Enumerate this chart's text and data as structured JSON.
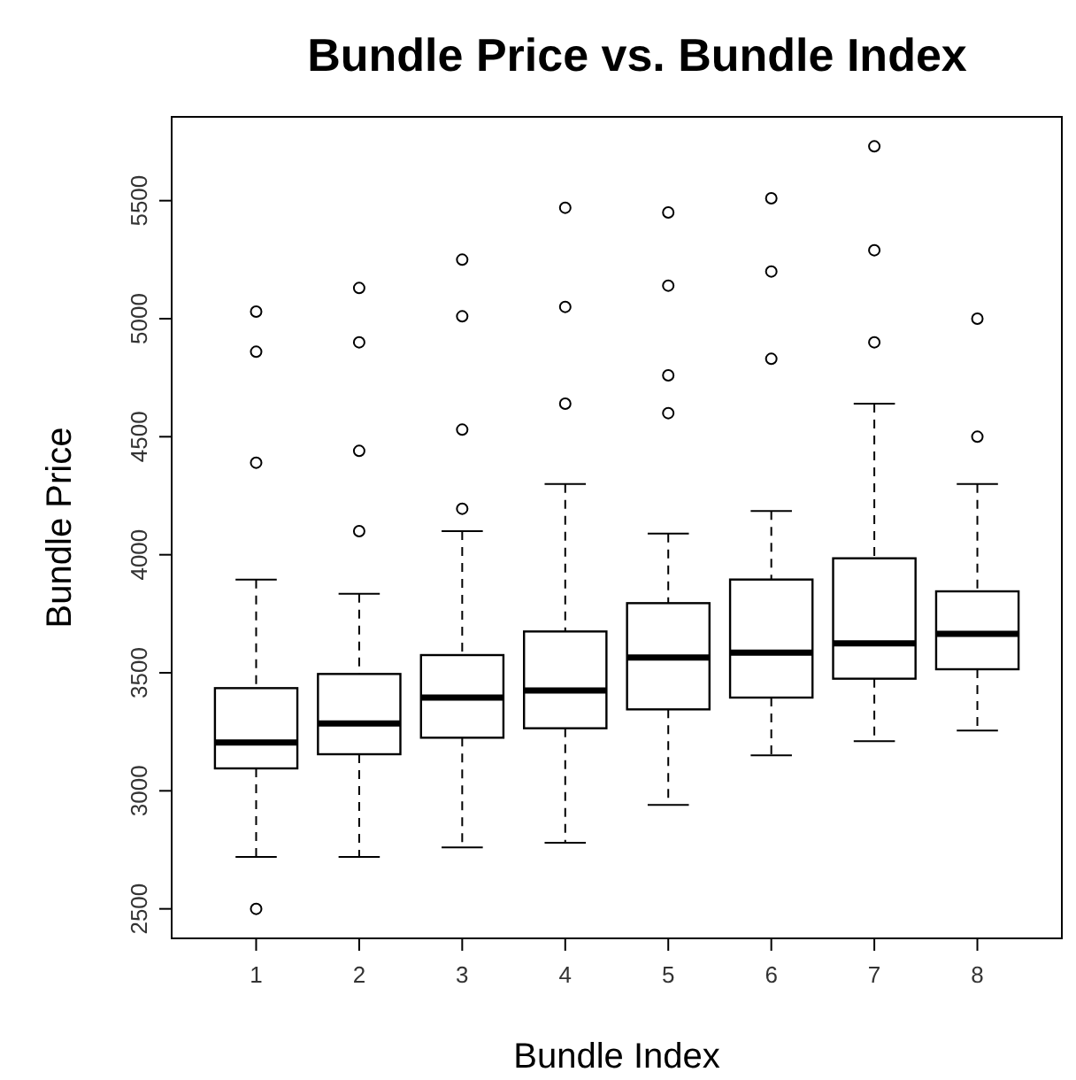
{
  "chart_data": {
    "type": "box",
    "title": "Bundle Price vs. Bundle Index",
    "xlabel": "Bundle Index",
    "ylabel": "Bundle Price",
    "categories": [
      "1",
      "2",
      "3",
      "4",
      "5",
      "6",
      "7",
      "8"
    ],
    "ylim": [
      2375,
      5855
    ],
    "yticks": [
      2500,
      3000,
      3500,
      4000,
      4500,
      5000,
      5500
    ],
    "grid": false,
    "boxes": [
      {
        "low": 2720,
        "q1": 3095,
        "median": 3205,
        "q3": 3435,
        "high": 3895,
        "outliers": [
          5030,
          4860,
          4390,
          2500
        ]
      },
      {
        "low": 2720,
        "q1": 3155,
        "median": 3285,
        "q3": 3495,
        "high": 3835,
        "outliers": [
          5130,
          4900,
          4440,
          4100
        ]
      },
      {
        "low": 2760,
        "q1": 3225,
        "median": 3395,
        "q3": 3575,
        "high": 4100,
        "outliers": [
          5250,
          5010,
          4530,
          4195
        ]
      },
      {
        "low": 2780,
        "q1": 3265,
        "median": 3425,
        "q3": 3675,
        "high": 4300,
        "outliers": [
          5470,
          5050,
          4640
        ]
      },
      {
        "low": 2940,
        "q1": 3345,
        "median": 3565,
        "q3": 3795,
        "high": 4090,
        "outliers": [
          5450,
          5140,
          4760,
          4600
        ]
      },
      {
        "low": 3150,
        "q1": 3395,
        "median": 3585,
        "q3": 3895,
        "high": 4185,
        "outliers": [
          5510,
          5200,
          4830
        ]
      },
      {
        "low": 3210,
        "q1": 3475,
        "median": 3625,
        "q3": 3985,
        "high": 4640,
        "outliers": [
          5730,
          5290,
          4900
        ]
      },
      {
        "low": 3255,
        "q1": 3515,
        "median": 3665,
        "q3": 3845,
        "high": 4300,
        "outliers": [
          5000,
          4500
        ]
      }
    ]
  }
}
